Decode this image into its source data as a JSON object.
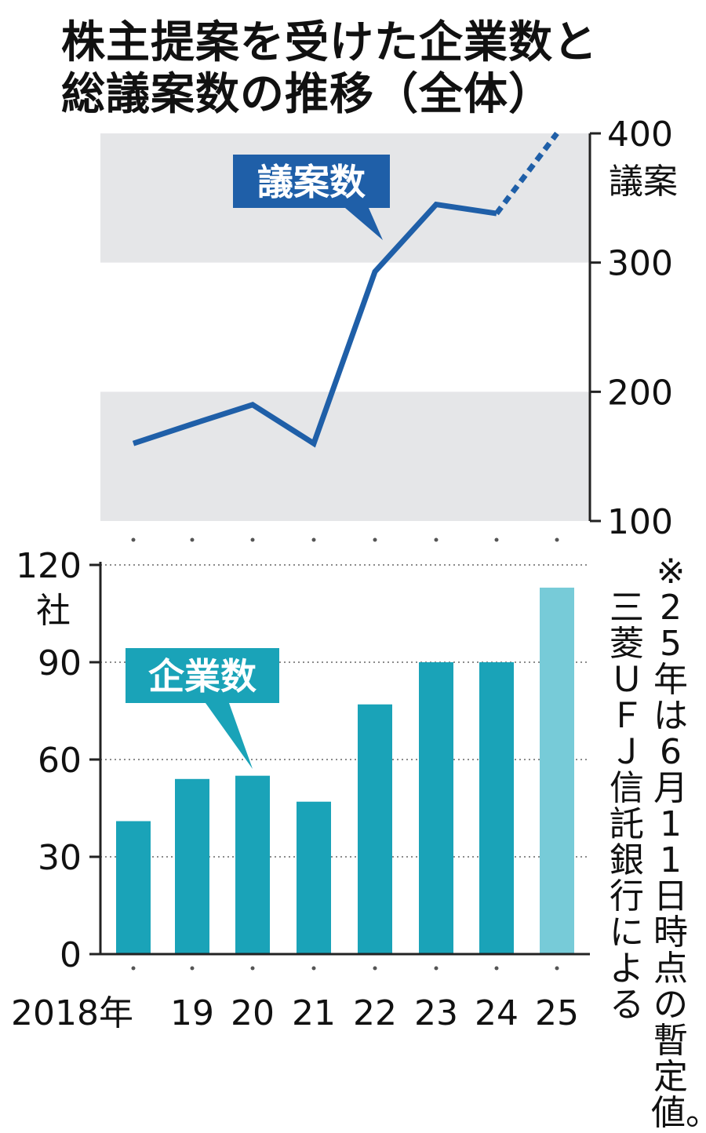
{
  "title": [
    "株主提案を受けた企業数と",
    "総議案数の推移（全体）"
  ],
  "note": [
    "※",
    "25年は6月11日時点の暫定値。",
    "三菱ＵＦＪ信託銀行による"
  ],
  "chart_data": [
    {
      "type": "line",
      "series_label": "議案数",
      "x": [
        "2018年",
        "19",
        "20",
        "21",
        "22",
        "23",
        "24",
        "25"
      ],
      "values": [
        160,
        175,
        190,
        160,
        293,
        345,
        338,
        400
      ],
      "dashed_from_index": 6,
      "color": "#1f5fa8",
      "ylim": [
        100,
        400
      ],
      "yticks": [
        "100",
        "200",
        "300",
        "400"
      ],
      "y_unit": "議案",
      "bands": [
        [
          100,
          200
        ],
        [
          300,
          400
        ]
      ],
      "band_color": "#e5e6e8"
    },
    {
      "type": "bar",
      "series_label": "企業数",
      "categories": [
        "2018年",
        "19",
        "20",
        "21",
        "22",
        "23",
        "24",
        "25"
      ],
      "values": [
        41,
        54,
        55,
        47,
        77,
        90,
        90,
        113
      ],
      "colors": [
        "#1aa3b8",
        "#1aa3b8",
        "#1aa3b8",
        "#1aa3b8",
        "#1aa3b8",
        "#1aa3b8",
        "#1aa3b8",
        "#77cbd8"
      ],
      "ylim": [
        0,
        120
      ],
      "yticks": [
        "0",
        "30",
        "60",
        "90",
        "120"
      ],
      "y_unit": "社",
      "grid": "dotted"
    }
  ]
}
